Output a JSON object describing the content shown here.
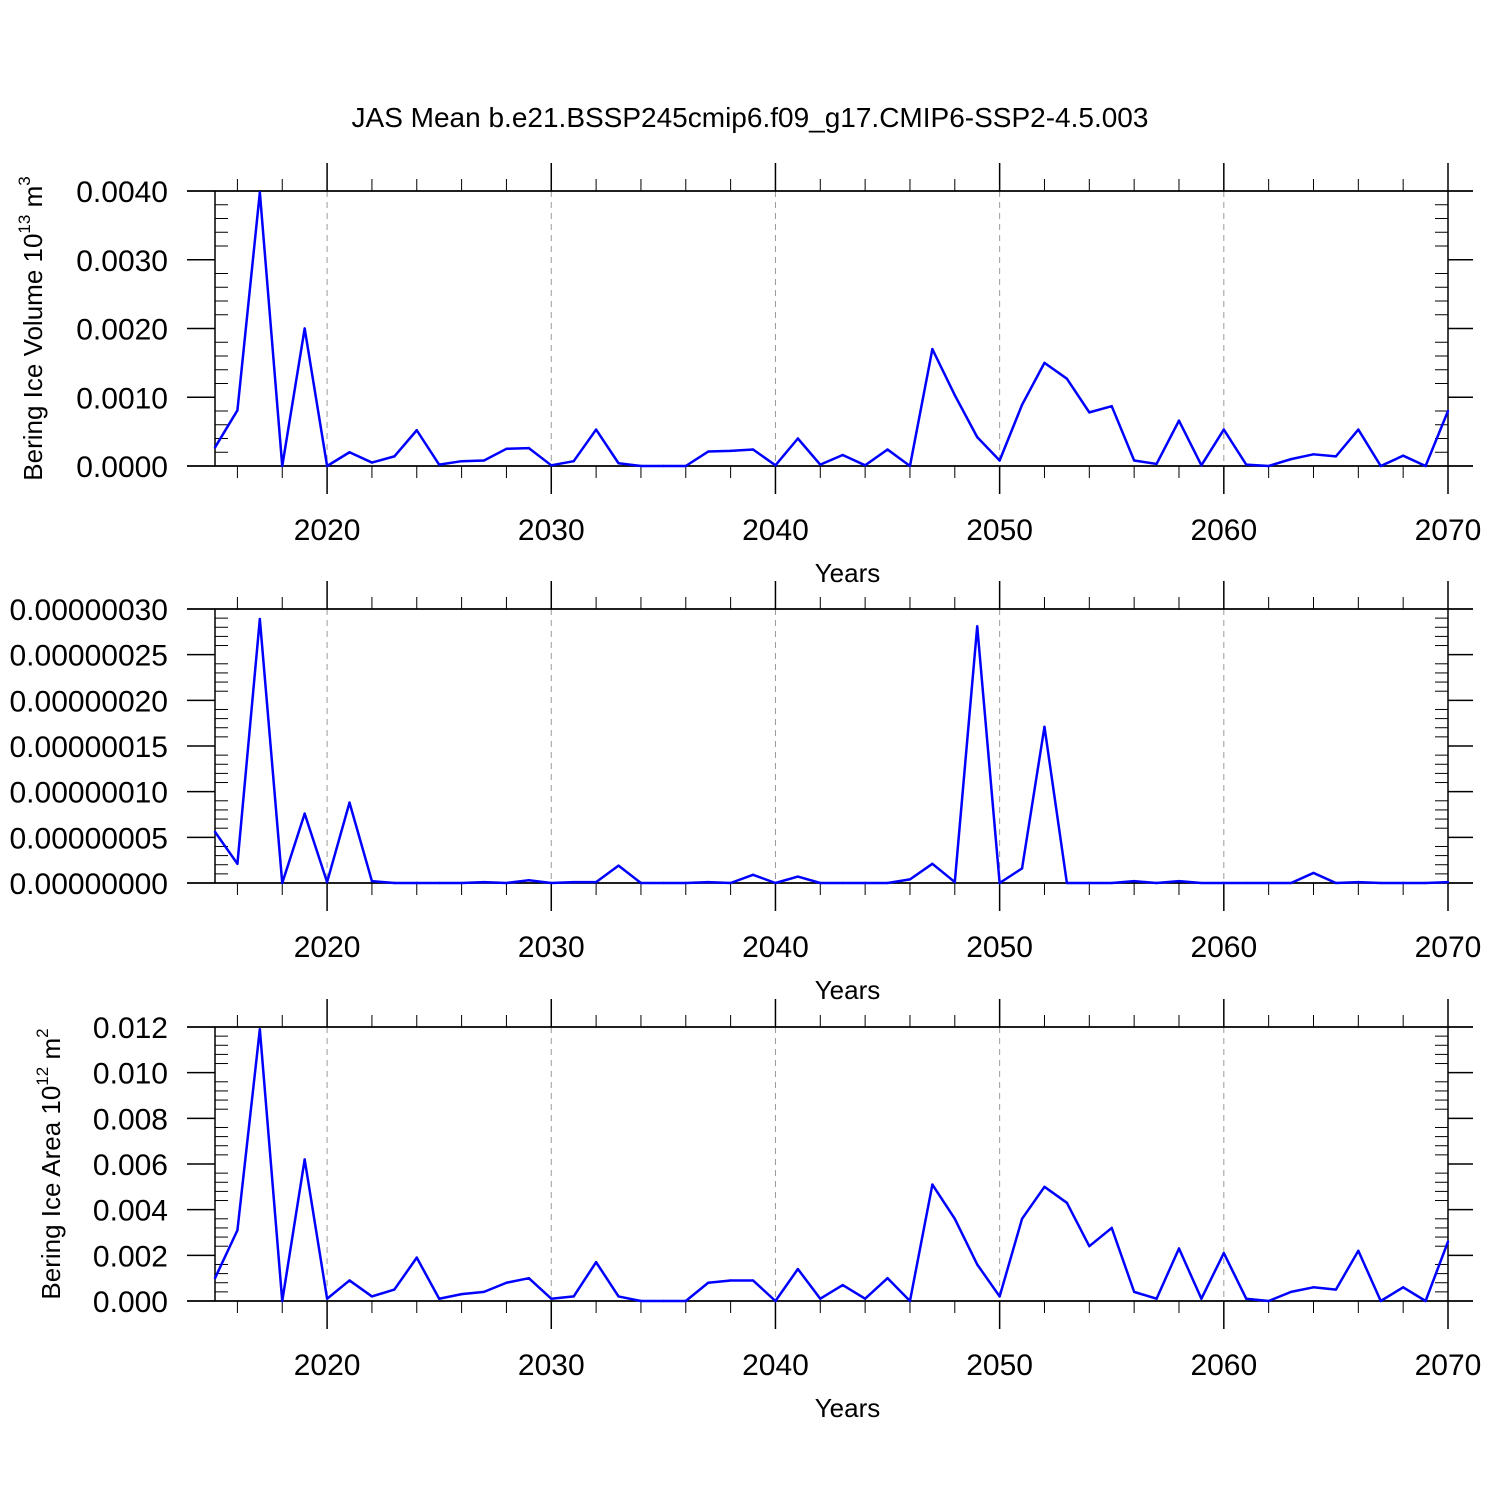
{
  "title": "JAS Mean b.e21.BSSP245cmip6.f09_g17.CMIP6-SSP2-4.5.003",
  "line_color": "#0000ff",
  "grid_color": "#9a9a9a",
  "chart_data": [
    {
      "type": "line",
      "ylabel": "Bering Ice Volume 10",
      "ylabel_exponent": "13",
      "ylabel_unit": "m",
      "ylabel_unit_exponent": "3",
      "xlabel": "Years",
      "xlim": [
        2015,
        2070
      ],
      "ylim": [
        0,
        0.004
      ],
      "yticks": [
        0,
        0.001,
        0.002,
        0.003,
        0.004
      ],
      "ytick_labels": [
        "0.0000",
        "0.0010",
        "0.0020",
        "0.0030",
        "0.0040"
      ],
      "xticks": [
        2020,
        2030,
        2040,
        2050,
        2060,
        2070
      ],
      "xtick_labels": [
        "2020",
        "2030",
        "2040",
        "2050",
        "2060",
        "2070"
      ],
      "grid": "vertical dashed at major x ticks",
      "x": [
        2015,
        2016,
        2017,
        2018,
        2019,
        2020,
        2021,
        2022,
        2023,
        2024,
        2025,
        2026,
        2027,
        2028,
        2029,
        2030,
        2031,
        2032,
        2033,
        2034,
        2035,
        2036,
        2037,
        2038,
        2039,
        2040,
        2041,
        2042,
        2043,
        2044,
        2045,
        2046,
        2047,
        2048,
        2049,
        2050,
        2051,
        2052,
        2053,
        2054,
        2055,
        2056,
        2057,
        2058,
        2059,
        2060,
        2061,
        2062,
        2063,
        2064,
        2065,
        2066,
        2067,
        2068,
        2069,
        2070
      ],
      "series": [
        {
          "values": [
            0.00027,
            0.00081,
            0.00398,
            0.0,
            0.002,
            0.0,
            0.0002,
            5e-05,
            0.00014,
            0.00052,
            2e-05,
            7e-05,
            8e-05,
            0.00025,
            0.00026,
            1e-05,
            7e-05,
            0.00053,
            4e-05,
            0.0,
            0.0,
            0.0,
            0.00021,
            0.00022,
            0.00024,
            1e-05,
            0.0004,
            2e-05,
            0.00016,
            1e-05,
            0.00024,
            0.0,
            0.0017,
            0.00103,
            0.00042,
            8e-05,
            0.00089,
            0.0015,
            0.00127,
            0.00078,
            0.00087,
            8e-05,
            3e-05,
            0.00066,
            1e-05,
            0.00053,
            2e-05,
            0.0,
            0.0001,
            0.00017,
            0.00014,
            0.00053,
            0.0,
            0.00015,
            0.0,
            0.0008
          ]
        }
      ]
    },
    {
      "type": "line",
      "ylabel": "",
      "xlabel": "Years",
      "xlim": [
        2015,
        2070
      ],
      "ylim": [
        0,
        3e-07
      ],
      "yticks": [
        0,
        5e-08,
        1e-07,
        1.5e-07,
        2e-07,
        2.5e-07,
        3e-07
      ],
      "ytick_labels": [
        "0.00000000",
        "0.00000005",
        "0.00000010",
        "0.00000015",
        "0.00000020",
        "0.00000025",
        "0.00000030"
      ],
      "xticks": [
        2020,
        2030,
        2040,
        2050,
        2060,
        2070
      ],
      "xtick_labels": [
        "2020",
        "2030",
        "2040",
        "2050",
        "2060",
        "2070"
      ],
      "grid": "vertical dashed at major x ticks",
      "x": [
        2015,
        2016,
        2017,
        2018,
        2019,
        2020,
        2021,
        2022,
        2023,
        2024,
        2025,
        2026,
        2027,
        2028,
        2029,
        2030,
        2031,
        2032,
        2033,
        2034,
        2035,
        2036,
        2037,
        2038,
        2039,
        2040,
        2041,
        2042,
        2043,
        2044,
        2045,
        2046,
        2047,
        2048,
        2049,
        2050,
        2051,
        2052,
        2053,
        2054,
        2055,
        2056,
        2057,
        2058,
        2059,
        2060,
        2061,
        2062,
        2063,
        2064,
        2065,
        2066,
        2067,
        2068,
        2069,
        2070
      ],
      "series": [
        {
          "values": [
            5.6e-08,
            2.1e-08,
            2.89e-07,
            0.0,
            7.6e-08,
            1e-09,
            8.8e-08,
            2e-09,
            0.0,
            0.0,
            0.0,
            0.0,
            1e-09,
            0.0,
            3e-09,
            0.0,
            1e-09,
            1e-09,
            1.9e-08,
            0.0,
            0.0,
            0.0,
            1e-09,
            0.0,
            9e-09,
            0.0,
            7e-09,
            0.0,
            0.0,
            0.0,
            0.0,
            4e-09,
            2.1e-08,
            1e-09,
            2.81e-07,
            0.0,
            1.6e-08,
            1.71e-07,
            0.0,
            0.0,
            0.0,
            2e-09,
            0.0,
            2e-09,
            0.0,
            0.0,
            0.0,
            0.0,
            0.0,
            1.1e-08,
            0.0,
            1e-09,
            0.0,
            0.0,
            0.0,
            1e-09
          ]
        }
      ]
    },
    {
      "type": "line",
      "ylabel": "Bering Ice Area 10",
      "ylabel_exponent": "12",
      "ylabel_unit": "m",
      "ylabel_unit_exponent": "2",
      "xlabel": "Years",
      "xlim": [
        2015,
        2070
      ],
      "ylim": [
        0,
        0.012
      ],
      "yticks": [
        0,
        0.002,
        0.004,
        0.006,
        0.008,
        0.01,
        0.012
      ],
      "ytick_labels": [
        "0.000",
        "0.002",
        "0.004",
        "0.006",
        "0.008",
        "0.010",
        "0.012"
      ],
      "xticks": [
        2020,
        2030,
        2040,
        2050,
        2060,
        2070
      ],
      "xtick_labels": [
        "2020",
        "2030",
        "2040",
        "2050",
        "2060",
        "2070"
      ],
      "grid": "vertical dashed at major x ticks",
      "x": [
        2015,
        2016,
        2017,
        2018,
        2019,
        2020,
        2021,
        2022,
        2023,
        2024,
        2025,
        2026,
        2027,
        2028,
        2029,
        2030,
        2031,
        2032,
        2033,
        2034,
        2035,
        2036,
        2037,
        2038,
        2039,
        2040,
        2041,
        2042,
        2043,
        2044,
        2045,
        2046,
        2047,
        2048,
        2049,
        2050,
        2051,
        2052,
        2053,
        2054,
        2055,
        2056,
        2057,
        2058,
        2059,
        2060,
        2061,
        2062,
        2063,
        2064,
        2065,
        2066,
        2067,
        2068,
        2069,
        2070
      ],
      "series": [
        {
          "values": [
            0.001,
            0.0031,
            0.0119,
            0.0,
            0.0062,
            0.0001,
            0.0009,
            0.0002,
            0.0005,
            0.0019,
            0.0001,
            0.0003,
            0.0004,
            0.0008,
            0.001,
            0.0001,
            0.0002,
            0.0017,
            0.0002,
            0.0,
            0.0,
            0.0,
            0.0008,
            0.0009,
            0.0009,
            0.0,
            0.0014,
            0.0001,
            0.0007,
            0.0001,
            0.001,
            0.0,
            0.0051,
            0.0036,
            0.0016,
            0.0002,
            0.0036,
            0.005,
            0.0043,
            0.0024,
            0.0032,
            0.0004,
            0.0001,
            0.0023,
            0.0001,
            0.0021,
            0.0001,
            0.0,
            0.0004,
            0.0006,
            0.0005,
            0.0022,
            0.0,
            0.0006,
            0.0,
            0.0026
          ]
        }
      ]
    }
  ]
}
